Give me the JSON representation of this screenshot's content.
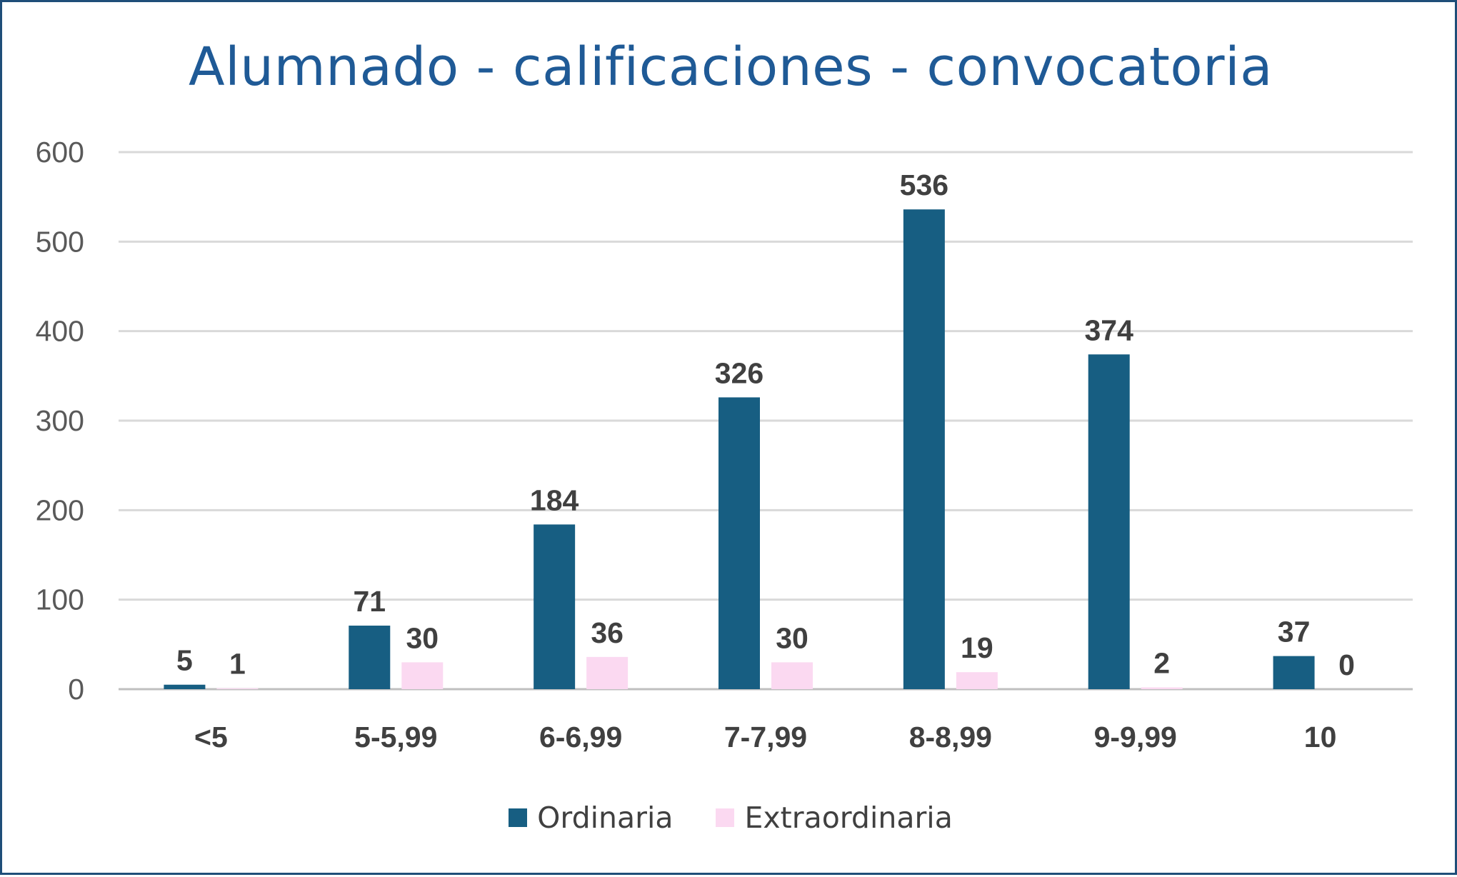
{
  "chart_data": {
    "type": "bar",
    "title": "Alumnado - calificaciones - convocatoria",
    "categories": [
      "<5",
      "5-5,99",
      "6-6,99",
      "7-7,99",
      "8-8,99",
      "9-9,99",
      "10"
    ],
    "series": [
      {
        "name": "Ordinaria",
        "values": [
          5,
          71,
          184,
          326,
          536,
          374,
          37
        ],
        "color": "#175e82"
      },
      {
        "name": "Extraordinaria",
        "values": [
          1,
          30,
          36,
          30,
          19,
          2,
          0
        ],
        "color": "#fbd9f1"
      }
    ],
    "ylim": [
      0,
      600
    ],
    "yticks": [
      0,
      100,
      200,
      300,
      400,
      500,
      600
    ],
    "grid": true,
    "legend": "bottom",
    "data_labels": true
  }
}
